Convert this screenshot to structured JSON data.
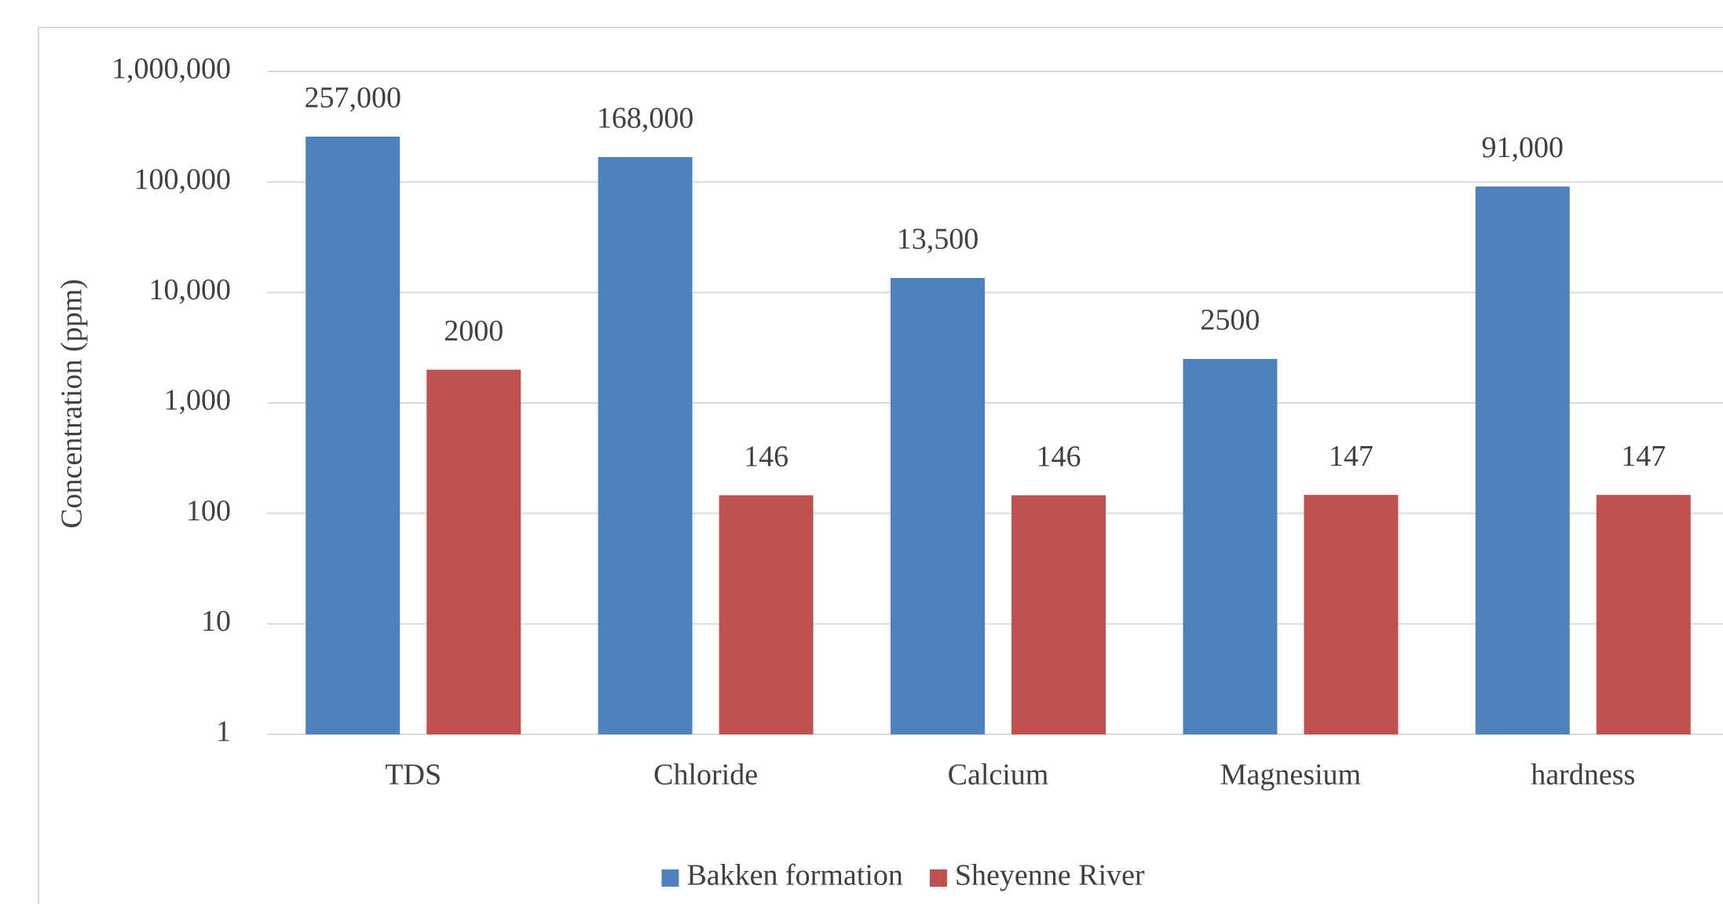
{
  "chart_data": {
    "type": "bar",
    "y_label": "Concentration (ppm)",
    "categories": [
      "TDS",
      "Chloride",
      "Calcium",
      "Magnesium",
      "hardness"
    ],
    "series": [
      {
        "name": "Bakken formation",
        "color": "#4f81bd",
        "values": [
          257000,
          168000,
          13500,
          2500,
          91000
        ],
        "value_labels": [
          "257,000",
          "168,000",
          "13,500",
          "2500",
          "91,000"
        ]
      },
      {
        "name": "Sheyenne River",
        "color": "#c0504d",
        "values": [
          2000,
          146,
          146,
          147,
          147
        ]
      }
    ],
    "ylim": [
      1,
      1000000
    ],
    "yticks": [
      1,
      10,
      100,
      {
        "value": 1000,
        "label": "1,000"
      },
      {
        "value": 10000,
        "label": "10,000"
      },
      {
        "value": 100000,
        "label": "100,000"
      },
      {
        "value": 1000000,
        "label": "1,000,000"
      }
    ],
    "log_scale": true,
    "grid": true,
    "legend": "bottom"
  }
}
